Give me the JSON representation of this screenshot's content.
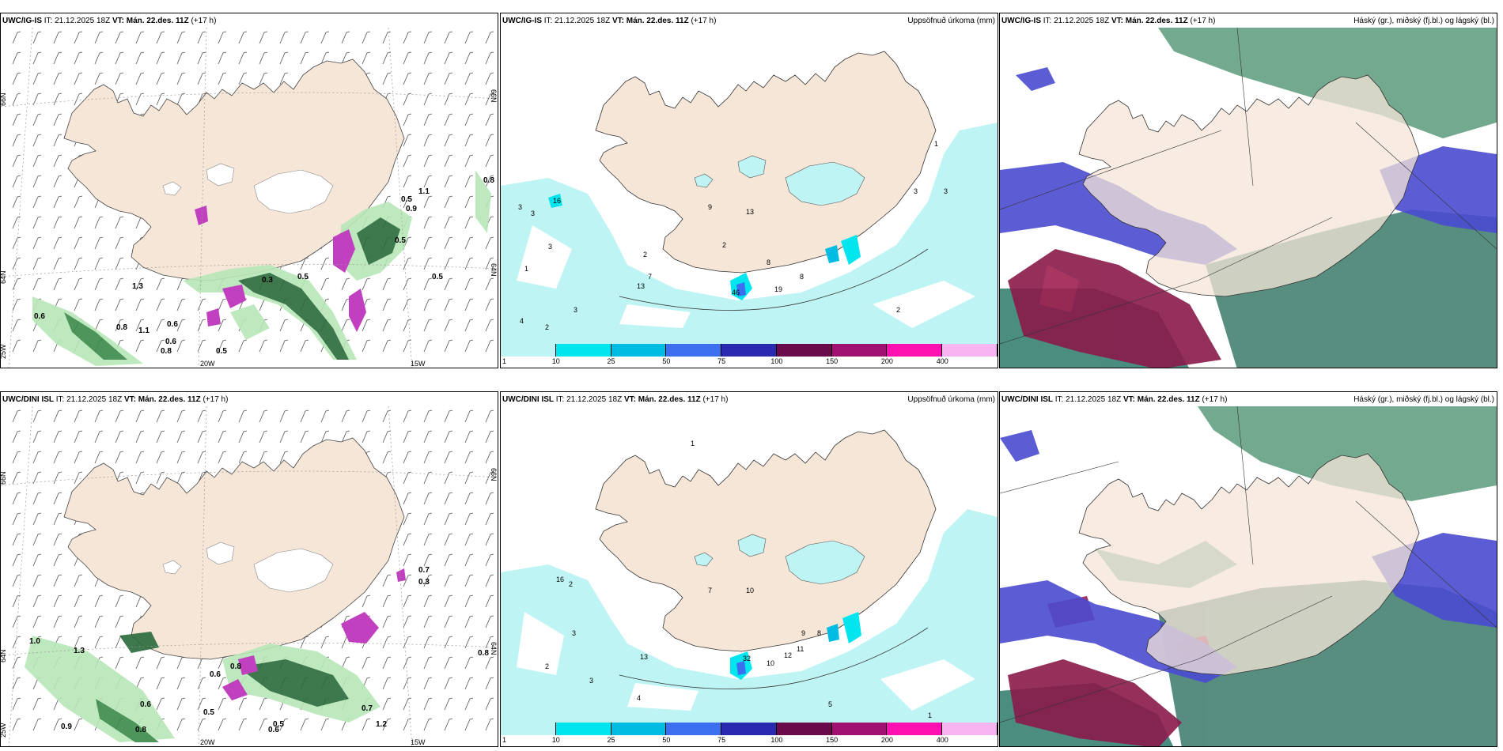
{
  "panels": {
    "p1": {
      "model": "UWC/IG-IS",
      "it": "IT: 21.12.2025 18Z",
      "vt_label": "VT:",
      "vt": "Mán. 22.des. 11Z",
      "lead": "(+17 h)",
      "title": ""
    },
    "p2": {
      "model": "UWC/IG-IS",
      "it": "IT: 21.12.2025 18Z",
      "vt_label": "VT:",
      "vt": "Mán. 22.des. 11Z",
      "lead": "(+17 h)",
      "title": "Uppsöfnuð úrkoma (mm)"
    },
    "p3": {
      "model": "UWC/IG-IS",
      "it": "IT: 21.12.2025 18Z",
      "vt_label": "VT:",
      "vt": "Mán. 22.des. 11Z",
      "lead": "(+17 h)",
      "title": "Háský (gr.), miðský (fj.bl.) og lágský (bl.)"
    },
    "p4": {
      "model": "UWC/DINI ISL",
      "it": "IT: 21.12.2025 18Z",
      "vt_label": "VT:",
      "vt": "Mán. 22.des. 11Z",
      "lead": "(+17 h)",
      "title": ""
    },
    "p5": {
      "model": "UWC/DINI ISL",
      "it": "IT: 21.12.2025 18Z",
      "vt_label": "VT:",
      "vt": "Mán. 22.des. 11Z",
      "lead": "(+17 h)",
      "title": "Uppsöfnuð úrkoma (mm)"
    },
    "p6": {
      "model": "UWC/DINI ISL",
      "it": "IT: 21.12.2025 18Z",
      "vt_label": "VT:",
      "vt": "Mán. 22.des. 11Z",
      "lead": "(+17 h)",
      "title": "Háský (gr.), miðský (fj.bl.) og lágský (bl.)"
    }
  },
  "grid_labels": {
    "lat66": "66N",
    "lat64": "64N",
    "lat63": "63N",
    "lon20": "20W",
    "lon15": "15W",
    "lon25": "25W"
  },
  "colorbar": {
    "labels": [
      "1",
      "10",
      "25",
      "50",
      "75",
      "100",
      "150",
      "200",
      "400"
    ],
    "colors": [
      "#bff4f4",
      "#00e5ee",
      "#00bce3",
      "#3c6ef0",
      "#2a2ab0",
      "#6a0a4a",
      "#a01070",
      "#ff10b0",
      "#f7b4f0"
    ]
  },
  "colors": {
    "land": "#f5e6d8",
    "sea": "#ffffff",
    "ice": "#ffffff",
    "precip_light": "#bff4f4",
    "precip_mid": "#00e5ee",
    "green_light": "#b8e6b8",
    "green_dark": "#1a5a2a",
    "purple": "#c040c0",
    "cloud_high": "#5a8a7a",
    "cloud_mid": "#8a1a4a",
    "cloud_low": "#3a3ad0"
  },
  "precip_values": {
    "p1": [
      "0.8",
      "0.6",
      "0.8",
      "1.1",
      "0.8",
      "0.5",
      "0.5",
      "1.3",
      "0.5",
      "0.5",
      "0.5",
      "1.1",
      "0.9",
      "0.3",
      "0.6",
      "0.6"
    ],
    "p2": [
      "3",
      "3",
      "16",
      "3",
      "1",
      "13",
      "7",
      "2",
      "9",
      "13",
      "2",
      "46",
      "19",
      "8",
      "8",
      "3",
      "1",
      "3",
      "3",
      "2",
      "2",
      "4"
    ],
    "p4": [
      "0.7",
      "0.3",
      "0.8",
      "1.0",
      "1.3",
      "0.8",
      "0.6",
      "0.6",
      "0.9",
      "0.8",
      "0.7",
      "1.2",
      "0.5",
      "0.6",
      "0.5"
    ],
    "p5": [
      "1",
      "16",
      "2",
      "3",
      "13",
      "7",
      "10",
      "10",
      "32",
      "12",
      "11",
      "9",
      "8",
      "5",
      "2",
      "3",
      "4",
      "1"
    ]
  }
}
